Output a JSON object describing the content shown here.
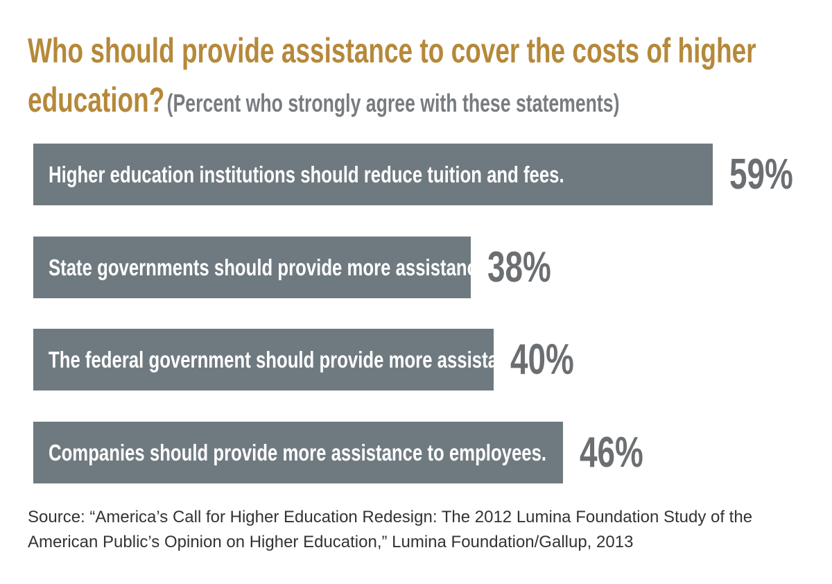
{
  "chart_data": {
    "type": "bar",
    "orientation": "horizontal",
    "title": "Who should provide assistance to cover the costs of higher education?",
    "subtitle": "(Percent who strongly agree with these statements)",
    "categories": [
      "Higher education institutions should reduce tuition and fees.",
      "State governments should provide more assistance.",
      "The federal government should provide more assistance.",
      "Companies should provide more assistance to employees."
    ],
    "values": [
      59,
      38,
      40,
      46
    ],
    "value_labels": [
      "59%",
      "38%",
      "40%",
      "46%"
    ],
    "color": "#6f7a80",
    "source": "Source: “America’s Call for Higher Education Redesign: The 2012 Lumina Foundation Study of the American Public’s Opinion on Higher Education,” Lumina Foundation/Gallup, 2013"
  }
}
